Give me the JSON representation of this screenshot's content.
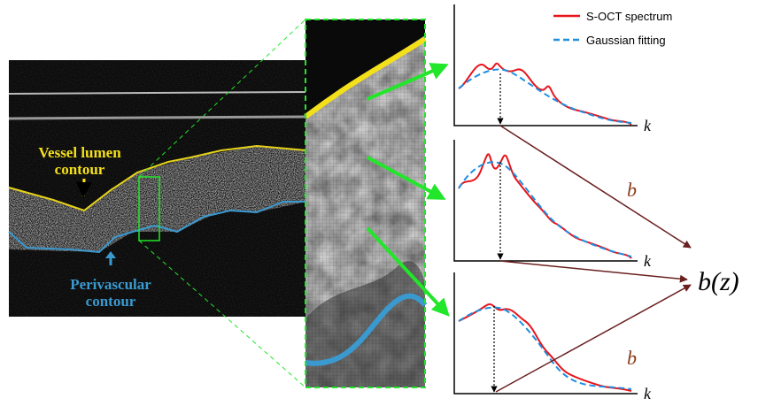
{
  "oct_image": {
    "vessel_label": [
      "Vessel lumen",
      "contour"
    ],
    "perivascular_label": [
      "Perivascular",
      "contour"
    ]
  },
  "legend": {
    "items": [
      {
        "label": "S-OCT spectrum",
        "color": "#e8141c"
      },
      {
        "label": "Gaussian fitting",
        "color": "#1f8fe0"
      }
    ]
  },
  "plots": [
    {
      "axis_label": "k"
    },
    {
      "axis_label": "k",
      "parameter_label": "b"
    },
    {
      "axis_label": "k",
      "parameter_label": "b"
    }
  ],
  "output_label": "b(z)"
}
